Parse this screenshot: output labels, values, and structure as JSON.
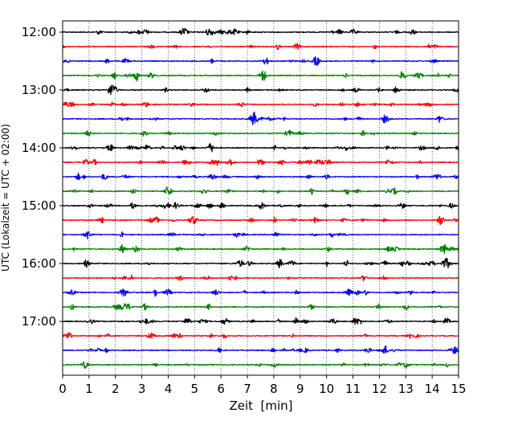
{
  "chart_data": {
    "type": "line",
    "title": "",
    "xlabel": "Zeit  [min]",
    "ylabel": "UTC (Lokalzeit = UTC + 02:00)",
    "xlim": [
      0,
      15
    ],
    "x_ticks": [
      "0",
      "1",
      "2",
      "3",
      "4",
      "5",
      "6",
      "7",
      "8",
      "9",
      "10",
      "11",
      "12",
      "13",
      "14",
      "15"
    ],
    "y_ticks": [
      "12:00",
      "13:00",
      "14:00",
      "15:00",
      "16:00",
      "17:00"
    ],
    "grid": "vertical dotted lines at each minute",
    "trace_colors": [
      "#000000",
      "#ff0000",
      "#0000ff",
      "#008000"
    ],
    "traces": [
      {
        "start": "12:00",
        "color": "#000000"
      },
      {
        "start": "12:15",
        "color": "#ff0000"
      },
      {
        "start": "12:30",
        "color": "#0000ff"
      },
      {
        "start": "12:45",
        "color": "#008000"
      },
      {
        "start": "13:00",
        "color": "#000000"
      },
      {
        "start": "13:15",
        "color": "#ff0000"
      },
      {
        "start": "13:30",
        "color": "#0000ff"
      },
      {
        "start": "13:45",
        "color": "#008000"
      },
      {
        "start": "14:00",
        "color": "#000000"
      },
      {
        "start": "14:15",
        "color": "#ff0000"
      },
      {
        "start": "14:30",
        "color": "#0000ff"
      },
      {
        "start": "14:45",
        "color": "#008000"
      },
      {
        "start": "15:00",
        "color": "#000000"
      },
      {
        "start": "15:15",
        "color": "#ff0000"
      },
      {
        "start": "15:30",
        "color": "#0000ff"
      },
      {
        "start": "15:45",
        "color": "#008000"
      },
      {
        "start": "16:00",
        "color": "#000000"
      },
      {
        "start": "16:15",
        "color": "#ff0000"
      },
      {
        "start": "16:30",
        "color": "#0000ff"
      },
      {
        "start": "16:45",
        "color": "#008000"
      },
      {
        "start": "17:00",
        "color": "#000000"
      },
      {
        "start": "17:15",
        "color": "#ff0000"
      },
      {
        "start": "17:30",
        "color": "#0000ff"
      },
      {
        "start": "17:45",
        "color": "#008000"
      }
    ]
  }
}
